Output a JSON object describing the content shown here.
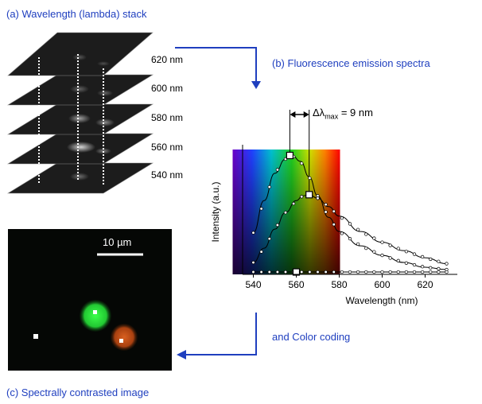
{
  "captions": {
    "a": "(a) Wavelength (lambda) stack",
    "b": "(b) Fluorescence emission spectra",
    "c": "(c) Spectrally contrasted image",
    "color_coding": "and Color coding"
  },
  "stack_labels": [
    "620 nm",
    "600 nm",
    "580 nm",
    "560 nm",
    "540 nm"
  ],
  "scale_bar": "10 µm",
  "delta_annotation": {
    "prefix": "Δλ",
    "sub": "max",
    "suffix": " = 9 nm"
  },
  "colors": {
    "caption": "#1f3fbf",
    "arrow": "#1f3fbf",
    "dot_green": "#29d23a",
    "dot_orange": "#c8501c"
  },
  "chart_data": {
    "type": "line",
    "xlabel": "Wavelength (nm)",
    "ylabel": "Intensity (a.u.)",
    "xlim": [
      535,
      635
    ],
    "ylim": [
      0,
      1.05
    ],
    "xticks": [
      540,
      560,
      580,
      600,
      620
    ],
    "series": [
      {
        "x": [
          540,
          545,
          550,
          555,
          558,
          562,
          566,
          570,
          575,
          580,
          590,
          600,
          610,
          620,
          630
        ],
        "y": [
          0.35,
          0.62,
          0.85,
          0.97,
          1.0,
          0.95,
          0.82,
          0.66,
          0.48,
          0.36,
          0.24,
          0.16,
          0.1,
          0.06,
          0.04
        ]
      },
      {
        "x": [
          540,
          545,
          550,
          555,
          560,
          563,
          566,
          570,
          575,
          580,
          590,
          600,
          610,
          620,
          630
        ],
        "y": [
          0.1,
          0.22,
          0.38,
          0.52,
          0.62,
          0.66,
          0.67,
          0.64,
          0.57,
          0.49,
          0.36,
          0.27,
          0.2,
          0.14,
          0.09
        ]
      },
      {
        "x": [
          540,
          550,
          560,
          570,
          580,
          590,
          600,
          610,
          620,
          630
        ],
        "y": [
          0.02,
          0.02,
          0.02,
          0.02,
          0.02,
          0.02,
          0.02,
          0.02,
          0.02,
          0.02
        ]
      }
    ],
    "markers": [
      {
        "x": 557,
        "y": 1.0,
        "label": "■"
      },
      {
        "x": 566,
        "y": 0.67,
        "label": "■"
      },
      {
        "x": 560,
        "y": 0.02,
        "label": "□"
      }
    ],
    "spectrum_band": [
      540,
      570
    ],
    "grid": false
  }
}
